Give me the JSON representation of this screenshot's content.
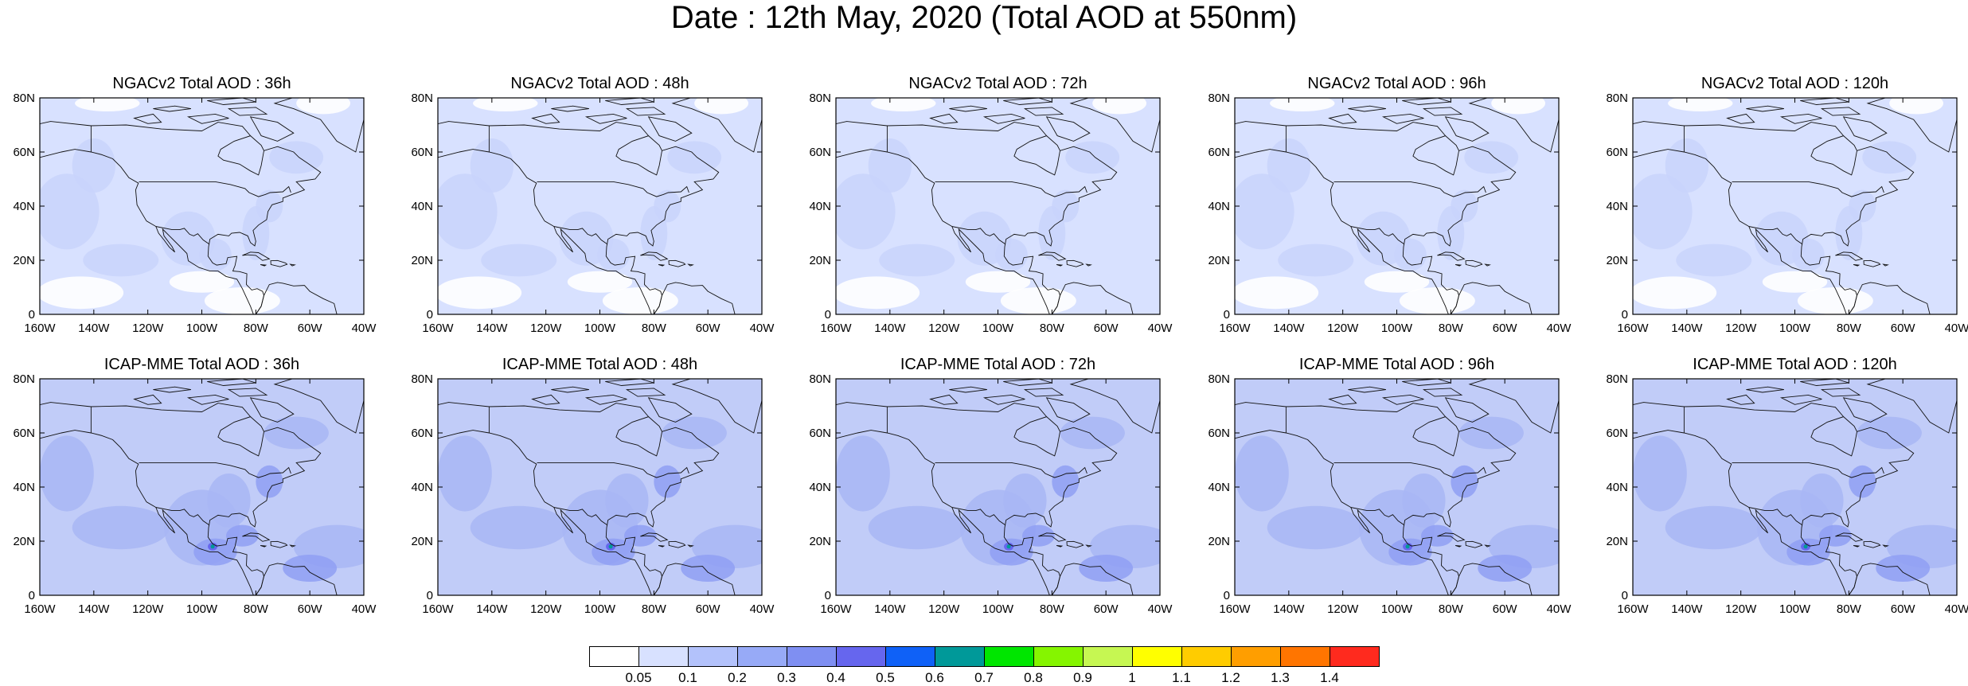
{
  "title": "Date : 12th May, 2020 (Total AOD at 550nm)",
  "lat_ticks": [
    "80N",
    "60N",
    "40N",
    "20N",
    "0"
  ],
  "lon_ticks": [
    "160W",
    "140W",
    "120W",
    "100W",
    "80W",
    "60W",
    "40W"
  ],
  "rows": [
    {
      "model": "NGACv2",
      "panels": [
        {
          "title": "NGACv2 Total AOD : 36h",
          "base_color": "#d8e1ff",
          "mid_color": "#c9d4fb"
        },
        {
          "title": "NGACv2 Total AOD : 48h",
          "base_color": "#d8e1ff",
          "mid_color": "#c9d4fb"
        },
        {
          "title": "NGACv2 Total AOD : 72h",
          "base_color": "#d8e1ff",
          "mid_color": "#c9d4fb"
        },
        {
          "title": "NGACv2 Total AOD : 96h",
          "base_color": "#d8e1ff",
          "mid_color": "#c9d4fb"
        },
        {
          "title": "NGACv2 Total AOD : 120h",
          "base_color": "#d8e1ff",
          "mid_color": "#c9d4fb"
        }
      ]
    },
    {
      "model": "ICAP-MME",
      "panels": [
        {
          "title": "ICAP-MME Total AOD : 36h",
          "base_color": "#c1ccf8",
          "mid_color": "#a8b6f4"
        },
        {
          "title": "ICAP-MME Total AOD : 48h",
          "base_color": "#c1ccf8",
          "mid_color": "#a8b6f4"
        },
        {
          "title": "ICAP-MME Total AOD : 72h",
          "base_color": "#c1ccf8",
          "mid_color": "#a8b6f4"
        },
        {
          "title": "ICAP-MME Total AOD : 96h",
          "base_color": "#c1ccf8",
          "mid_color": "#a8b6f4"
        },
        {
          "title": "ICAP-MME Total AOD : 120h",
          "base_color": "#c1ccf8",
          "mid_color": "#a8b6f4"
        }
      ]
    }
  ],
  "colorbar": {
    "colors": [
      "#ffffff",
      "#d8e1ff",
      "#b3c2fb",
      "#97aaf7",
      "#7f8ff2",
      "#6666ee",
      "#0f61f7",
      "#009999",
      "#00e600",
      "#85f500",
      "#c6f752",
      "#ffff00",
      "#ffcc00",
      "#ff9e00",
      "#ff7500",
      "#ff2a1e"
    ],
    "labels": [
      "0.05",
      "0.1",
      "0.2",
      "0.3",
      "0.4",
      "0.5",
      "0.6",
      "0.7",
      "0.8",
      "0.9",
      "1",
      "1.1",
      "1.2",
      "1.3",
      "1.4"
    ]
  }
}
